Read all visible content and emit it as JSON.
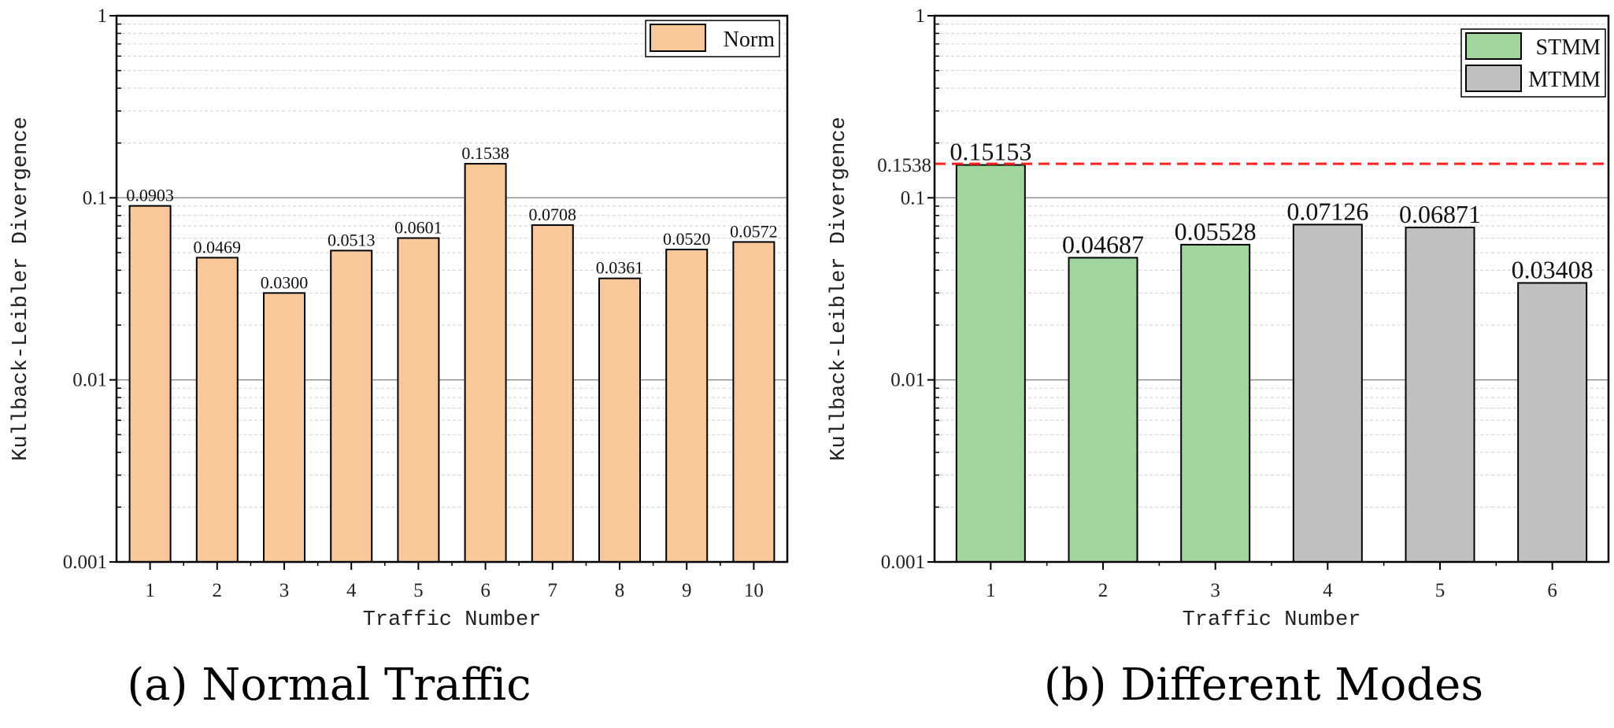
{
  "chart_data": [
    {
      "type": "bar",
      "caption": "(a) Normal Traffic",
      "xlabel": "Traffic Number",
      "ylabel": "Kullback-Leibler Divergence",
      "yscale": "log",
      "ylim": [
        0.001,
        1
      ],
      "yticks": [
        "0.001",
        "0.01",
        "0.1",
        "1"
      ],
      "categories": [
        "1",
        "2",
        "3",
        "4",
        "5",
        "6",
        "7",
        "8",
        "9",
        "10"
      ],
      "series": [
        {
          "name": "Norm",
          "color": "#f9c89a",
          "values": [
            0.0903,
            0.0469,
            0.03,
            0.0513,
            0.0601,
            0.1538,
            0.0708,
            0.0361,
            0.052,
            0.0572
          ],
          "labels": [
            "0.0903",
            "0.0469",
            "0.0300",
            "0.0513",
            "0.0601",
            "0.1538",
            "0.0708",
            "0.0361",
            "0.0520",
            "0.0572"
          ]
        }
      ],
      "bar_colors": [
        "#f9c89a",
        "#f9c89a",
        "#f9c89a",
        "#f9c89a",
        "#f9c89a",
        "#f9c89a",
        "#f9c89a",
        "#f9c89a",
        "#f9c89a",
        "#f9c89a"
      ],
      "legend": [
        {
          "name": "Norm",
          "color": "#f9c89a"
        }
      ],
      "legend_position": "top-right",
      "grid": true
    },
    {
      "type": "bar",
      "caption": "(b) Different Modes",
      "xlabel": "Traffic Number",
      "ylabel": "Kullback-Leibler Divergence",
      "yscale": "log",
      "ylim": [
        0.001,
        1
      ],
      "yticks": [
        "0.001",
        "0.01",
        "0.1",
        "1"
      ],
      "categories": [
        "1",
        "2",
        "3",
        "4",
        "5",
        "6"
      ],
      "series": [
        {
          "name": "STMM/MTMM",
          "values": [
            0.15153,
            0.04687,
            0.05528,
            0.07126,
            0.06871,
            0.03408
          ],
          "labels": [
            "0.15153",
            "0.04687",
            "0.05528",
            "0.07126",
            "0.06871",
            "0.03408"
          ]
        }
      ],
      "bar_colors": [
        "#a0d69e",
        "#a0d69e",
        "#a0d69e",
        "#c0c0c0",
        "#c0c0c0",
        "#c0c0c0"
      ],
      "legend": [
        {
          "name": "STMM",
          "color": "#a0d69e"
        },
        {
          "name": "MTMM",
          "color": "#c0c0c0"
        }
      ],
      "legend_position": "top-right",
      "reference_line": {
        "value": 0.1538,
        "label": "0.1538",
        "color": "#ff2020"
      },
      "grid": true
    }
  ]
}
